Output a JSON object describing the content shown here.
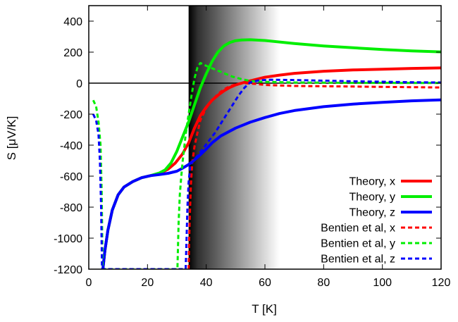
{
  "chart_data": {
    "type": "line",
    "xlabel": "T [K]",
    "ylabel": "S [μV/K]",
    "xlim": [
      0,
      120
    ],
    "ylim": [
      -1200,
      500
    ],
    "xticks": [
      0,
      20,
      40,
      60,
      80,
      100,
      120
    ],
    "yticks": [
      -1200,
      -1000,
      -800,
      -600,
      -400,
      -200,
      0,
      200,
      400
    ],
    "shaded_region": {
      "x_start": 34,
      "x_end": 65,
      "style": "gradient dark-to-light"
    },
    "zero_line": true,
    "legend_position": "bottom-right",
    "series": [
      {
        "name": "Theory, x",
        "color": "#ff0000",
        "style": "solid",
        "points": [
          [
            4.8,
            -1200
          ],
          [
            5.5,
            -1080
          ],
          [
            6.5,
            -950
          ],
          [
            8,
            -820
          ],
          [
            10,
            -720
          ],
          [
            12,
            -670
          ],
          [
            15,
            -635
          ],
          [
            18,
            -610
          ],
          [
            21,
            -597
          ],
          [
            24,
            -585
          ],
          [
            27,
            -555
          ],
          [
            29.5,
            -515
          ],
          [
            32,
            -455
          ],
          [
            34,
            -385
          ],
          [
            36,
            -290
          ],
          [
            38,
            -210
          ],
          [
            40,
            -155
          ],
          [
            42,
            -110
          ],
          [
            44,
            -78
          ],
          [
            46,
            -50
          ],
          [
            48,
            -28
          ],
          [
            50,
            -12
          ],
          [
            52,
            0
          ],
          [
            55,
            15
          ],
          [
            60,
            38
          ],
          [
            65,
            52
          ],
          [
            70,
            63
          ],
          [
            80,
            77
          ],
          [
            90,
            85
          ],
          [
            100,
            90
          ],
          [
            110,
            95
          ],
          [
            120,
            98
          ]
        ]
      },
      {
        "name": "Theory, y",
        "color": "#00ee00",
        "style": "solid",
        "points": [
          [
            4.8,
            -1200
          ],
          [
            5.5,
            -1080
          ],
          [
            6.5,
            -950
          ],
          [
            8,
            -820
          ],
          [
            10,
            -720
          ],
          [
            12,
            -670
          ],
          [
            15,
            -635
          ],
          [
            18,
            -610
          ],
          [
            21,
            -597
          ],
          [
            24,
            -580
          ],
          [
            26,
            -560
          ],
          [
            28,
            -515
          ],
          [
            30,
            -440
          ],
          [
            32,
            -345
          ],
          [
            34,
            -250
          ],
          [
            36,
            -140
          ],
          [
            38,
            -30
          ],
          [
            40,
            60
          ],
          [
            42,
            140
          ],
          [
            44,
            200
          ],
          [
            46,
            240
          ],
          [
            48,
            262
          ],
          [
            50,
            274
          ],
          [
            52,
            278
          ],
          [
            55,
            280
          ],
          [
            60,
            275
          ],
          [
            70,
            256
          ],
          [
            80,
            240
          ],
          [
            90,
            228
          ],
          [
            100,
            217
          ],
          [
            110,
            208
          ],
          [
            120,
            202
          ]
        ]
      },
      {
        "name": "Theory, z",
        "color": "#0000ff",
        "style": "solid",
        "points": [
          [
            4.8,
            -1200
          ],
          [
            5.5,
            -1080
          ],
          [
            6.5,
            -950
          ],
          [
            8,
            -820
          ],
          [
            10,
            -720
          ],
          [
            12,
            -670
          ],
          [
            15,
            -635
          ],
          [
            18,
            -610
          ],
          [
            21,
            -597
          ],
          [
            24,
            -590
          ],
          [
            27,
            -582
          ],
          [
            30,
            -568
          ],
          [
            32,
            -548
          ],
          [
            34,
            -525
          ],
          [
            36,
            -495
          ],
          [
            38,
            -462
          ],
          [
            40,
            -425
          ],
          [
            42,
            -385
          ],
          [
            45,
            -340
          ],
          [
            50,
            -290
          ],
          [
            55,
            -252
          ],
          [
            60,
            -222
          ],
          [
            65,
            -196
          ],
          [
            70,
            -177
          ],
          [
            80,
            -152
          ],
          [
            90,
            -135
          ],
          [
            100,
            -124
          ],
          [
            110,
            -114
          ],
          [
            120,
            -108
          ]
        ]
      },
      {
        "name": "Bentien et al, x",
        "color": "#ff0000",
        "style": "dashed",
        "points": [
          [
            34,
            -1200
          ],
          [
            34.2,
            -1000
          ],
          [
            34.5,
            -800
          ],
          [
            34.8,
            -650
          ],
          [
            35.2,
            -520
          ],
          [
            36,
            -410
          ],
          [
            37,
            -320
          ],
          [
            38,
            -240
          ],
          [
            40,
            -160
          ],
          [
            42,
            -110
          ],
          [
            44,
            -70
          ],
          [
            46,
            -40
          ],
          [
            48,
            -20
          ],
          [
            50,
            -8
          ],
          [
            53,
            0
          ],
          [
            57,
            -5
          ],
          [
            60,
            -12
          ],
          [
            70,
            -18
          ],
          [
            80,
            -20
          ],
          [
            90,
            -22
          ],
          [
            100,
            -24
          ],
          [
            110,
            -26
          ],
          [
            120,
            -28
          ]
        ]
      },
      {
        "name": "Bentien et al, y",
        "color": "#00ee00",
        "style": "dashed",
        "points": [
          [
            1.5,
            -110
          ],
          [
            2.5,
            -150
          ],
          [
            3.3,
            -250
          ],
          [
            4,
            -400
          ],
          [
            4.4,
            -700
          ],
          [
            4.7,
            -1200
          ],
          [
            30.2,
            -1200
          ],
          [
            30.6,
            -900
          ],
          [
            31,
            -720
          ],
          [
            31.5,
            -600
          ],
          [
            32,
            -500
          ],
          [
            32.5,
            -420
          ],
          [
            33,
            -330
          ],
          [
            34,
            -200
          ],
          [
            35,
            -80
          ],
          [
            36,
            30
          ],
          [
            37,
            100
          ],
          [
            38,
            130
          ],
          [
            40,
            112
          ],
          [
            43,
            88
          ],
          [
            46,
            64
          ],
          [
            49,
            42
          ],
          [
            52,
            26
          ],
          [
            55,
            14
          ],
          [
            60,
            8
          ],
          [
            70,
            4
          ],
          [
            80,
            3
          ],
          [
            90,
            2
          ],
          [
            100,
            2
          ],
          [
            110,
            1
          ],
          [
            120,
            1
          ]
        ]
      },
      {
        "name": "Bentien et al, z",
        "color": "#0000ff",
        "style": "dashed",
        "points": [
          [
            1.5,
            -200
          ],
          [
            2.5,
            -240
          ],
          [
            3.3,
            -330
          ],
          [
            3.8,
            -500
          ],
          [
            4.2,
            -800
          ],
          [
            4.5,
            -1200
          ],
          [
            33,
            -1200
          ],
          [
            33.3,
            -1000
          ],
          [
            33.6,
            -800
          ],
          [
            34,
            -640
          ],
          [
            34.5,
            -540
          ],
          [
            35.5,
            -500
          ],
          [
            37,
            -470
          ],
          [
            39,
            -420
          ],
          [
            41,
            -370
          ],
          [
            43,
            -320
          ],
          [
            45,
            -260
          ],
          [
            47,
            -200
          ],
          [
            49,
            -140
          ],
          [
            51,
            -80
          ],
          [
            53,
            -30
          ],
          [
            55,
            5
          ],
          [
            58,
            18
          ],
          [
            62,
            22
          ],
          [
            70,
            20
          ],
          [
            80,
            16
          ],
          [
            90,
            12
          ],
          [
            100,
            9
          ],
          [
            110,
            6
          ],
          [
            120,
            4
          ]
        ]
      }
    ]
  }
}
